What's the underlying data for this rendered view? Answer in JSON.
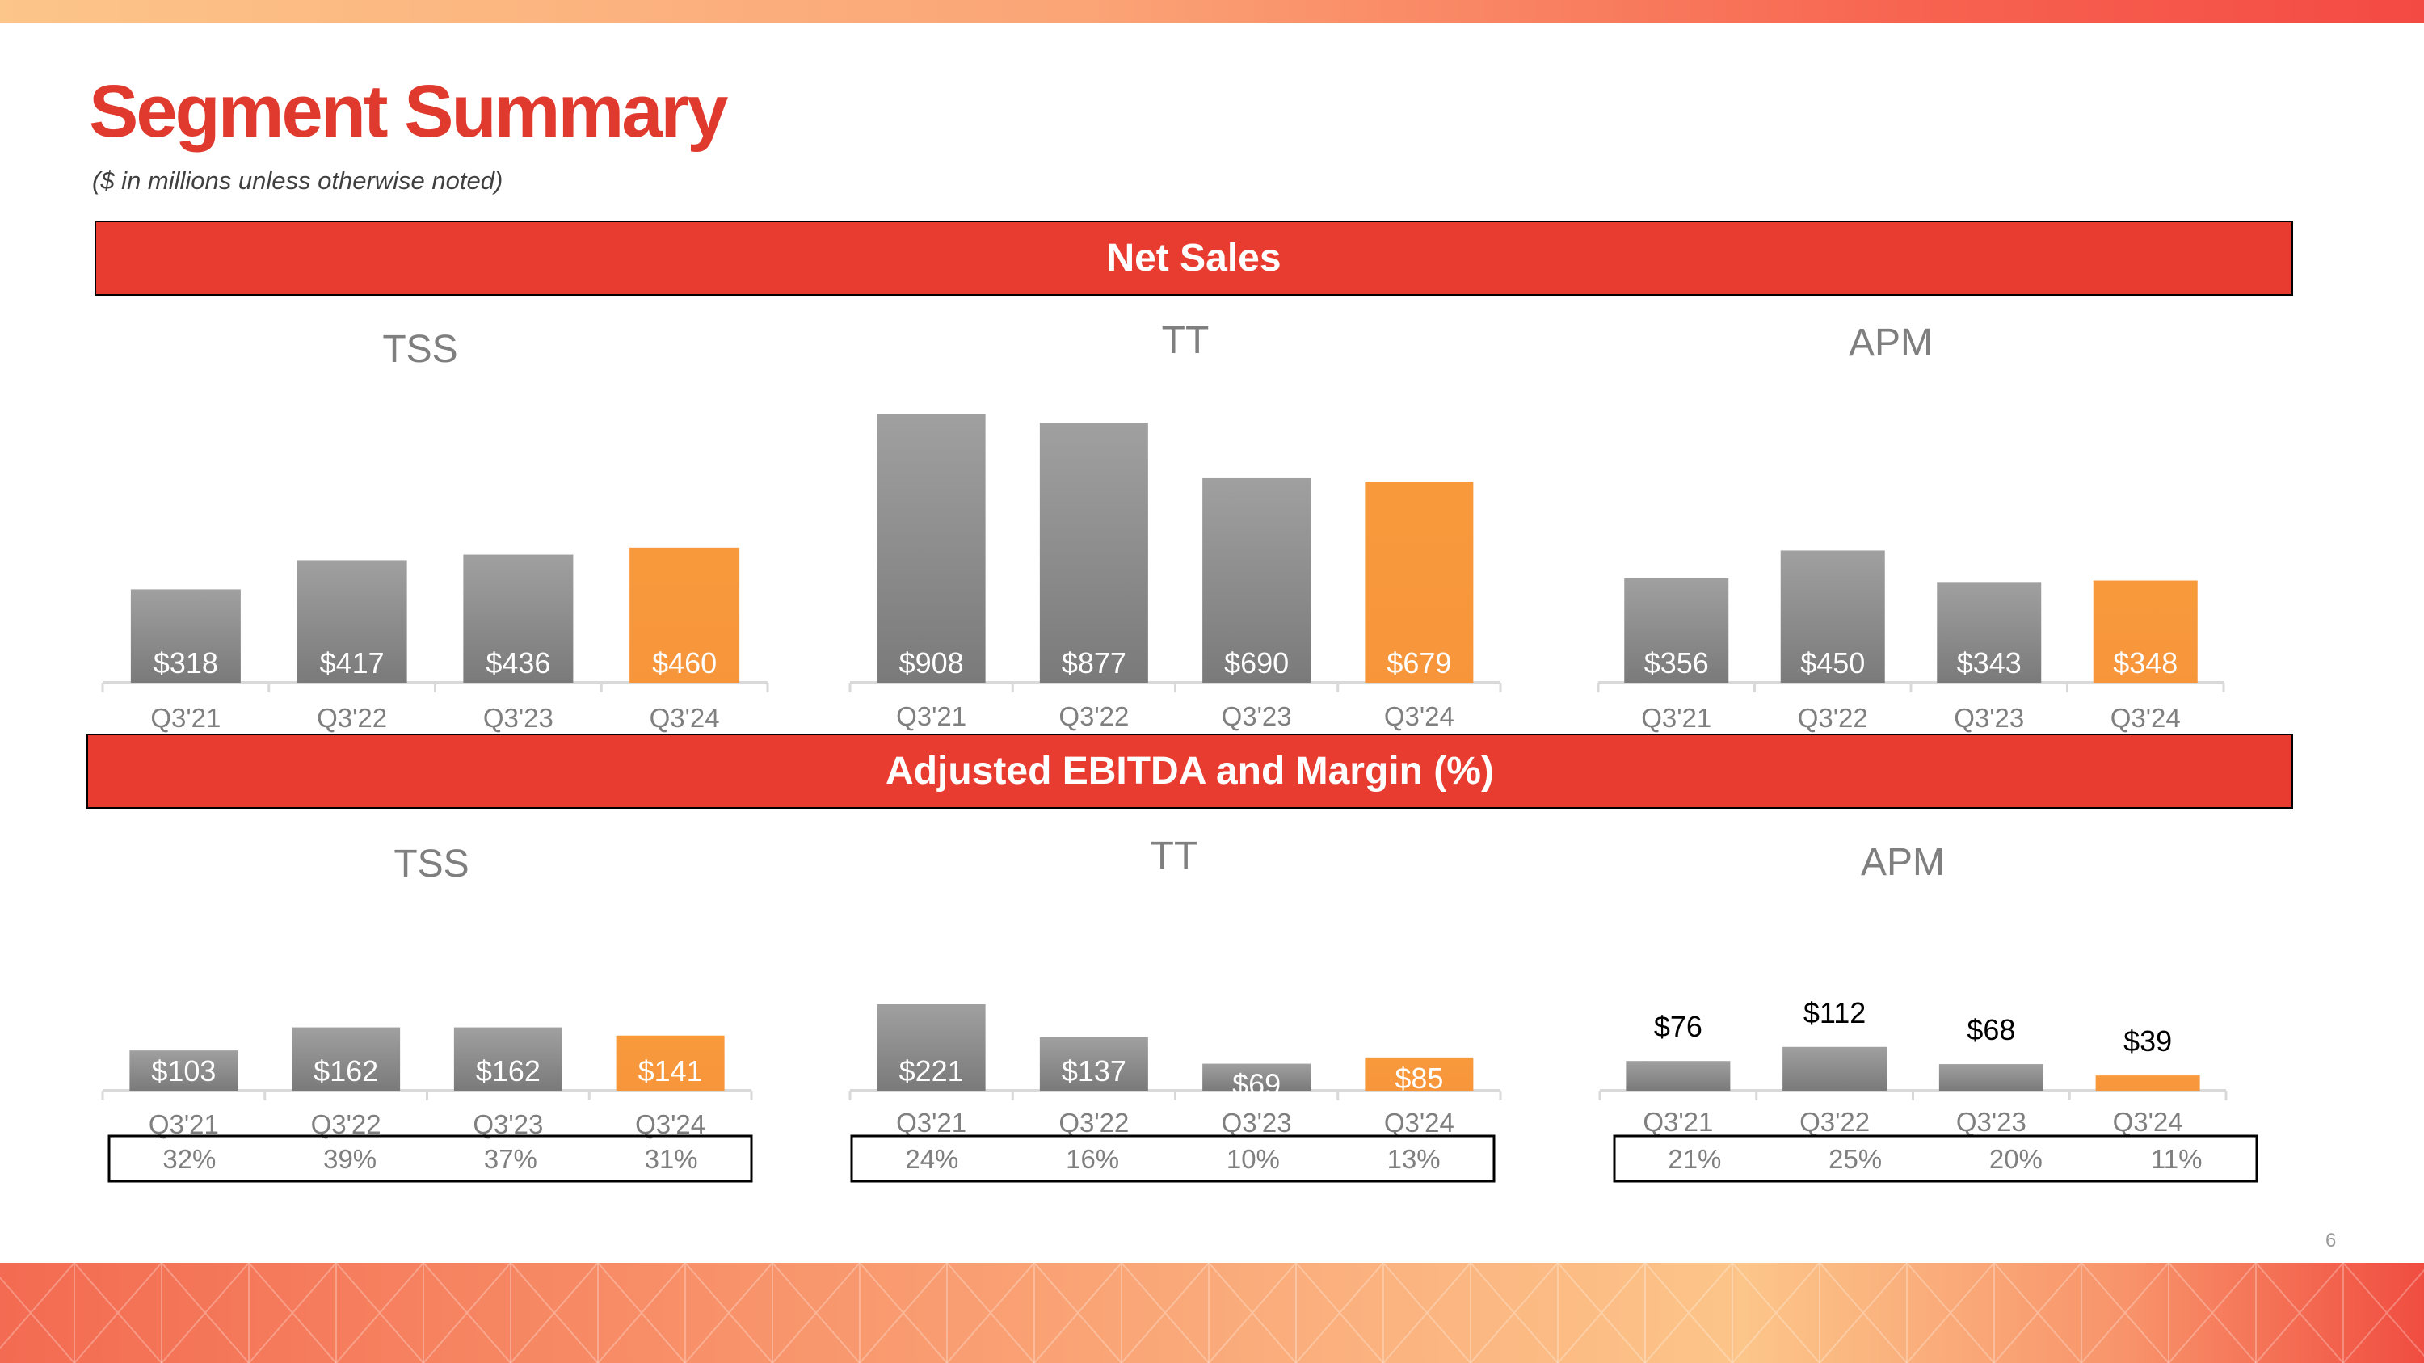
{
  "header": {
    "title": "Segment Summary",
    "subtitle": "($ in millions unless otherwise noted)"
  },
  "sections": {
    "net_sales": "Net Sales",
    "ebitda": "Adjusted EBITDA and Margin (%)"
  },
  "page_number": "6",
  "colors": {
    "accent_red": "#e83c30",
    "title_red": "#e03a2f",
    "bar_gray": "#8a8a8a",
    "highlight_orange": "#f7953b"
  },
  "chart_data": [
    {
      "type": "bar",
      "group": "Net Sales",
      "title": "TSS",
      "categories": [
        "Q3'21",
        "Q3'22",
        "Q3'23",
        "Q3'24"
      ],
      "values": [
        318,
        417,
        436,
        460
      ],
      "value_labels": [
        "$318",
        "$417",
        "$436",
        "$460"
      ],
      "highlight_index": 3,
      "ylim": [
        0,
        908
      ]
    },
    {
      "type": "bar",
      "group": "Net Sales",
      "title": "TT",
      "categories": [
        "Q3'21",
        "Q3'22",
        "Q3'23",
        "Q3'24"
      ],
      "values": [
        908,
        877,
        690,
        679
      ],
      "value_labels": [
        "$908",
        "$877",
        "$690",
        "$679"
      ],
      "highlight_index": 3,
      "ylim": [
        0,
        908
      ]
    },
    {
      "type": "bar",
      "group": "Net Sales",
      "title": "APM",
      "categories": [
        "Q3'21",
        "Q3'22",
        "Q3'23",
        "Q3'24"
      ],
      "values": [
        356,
        450,
        343,
        348
      ],
      "value_labels": [
        "$356",
        "$450",
        "$343",
        "$348"
      ],
      "highlight_index": 3,
      "ylim": [
        0,
        908
      ]
    },
    {
      "type": "bar",
      "group": "Adjusted EBITDA and Margin (%)",
      "title": "TSS",
      "categories": [
        "Q3'21",
        "Q3'22",
        "Q3'23",
        "Q3'24"
      ],
      "values": [
        103,
        162,
        162,
        141
      ],
      "value_labels": [
        "$103",
        "$162",
        "$162",
        "$141"
      ],
      "margins": [
        "32%",
        "39%",
        "37%",
        "31%"
      ],
      "highlight_index": 3,
      "ylim": [
        0,
        221
      ]
    },
    {
      "type": "bar",
      "group": "Adjusted EBITDA and Margin (%)",
      "title": "TT",
      "categories": [
        "Q3'21",
        "Q3'22",
        "Q3'23",
        "Q3'24"
      ],
      "values": [
        221,
        137,
        69,
        85
      ],
      "value_labels": [
        "$221",
        "$137",
        "$69",
        "$85"
      ],
      "margins": [
        "24%",
        "16%",
        "10%",
        "13%"
      ],
      "highlight_index": 3,
      "ylim": [
        0,
        221
      ]
    },
    {
      "type": "bar",
      "group": "Adjusted EBITDA and Margin (%)",
      "title": "APM",
      "categories": [
        "Q3'21",
        "Q3'22",
        "Q3'23",
        "Q3'24"
      ],
      "values": [
        76,
        112,
        68,
        39
      ],
      "value_labels": [
        "$76",
        "$112",
        "$68",
        "$39"
      ],
      "margins": [
        "21%",
        "25%",
        "20%",
        "11%"
      ],
      "highlight_index": 3,
      "ylim": [
        0,
        221
      ]
    }
  ]
}
